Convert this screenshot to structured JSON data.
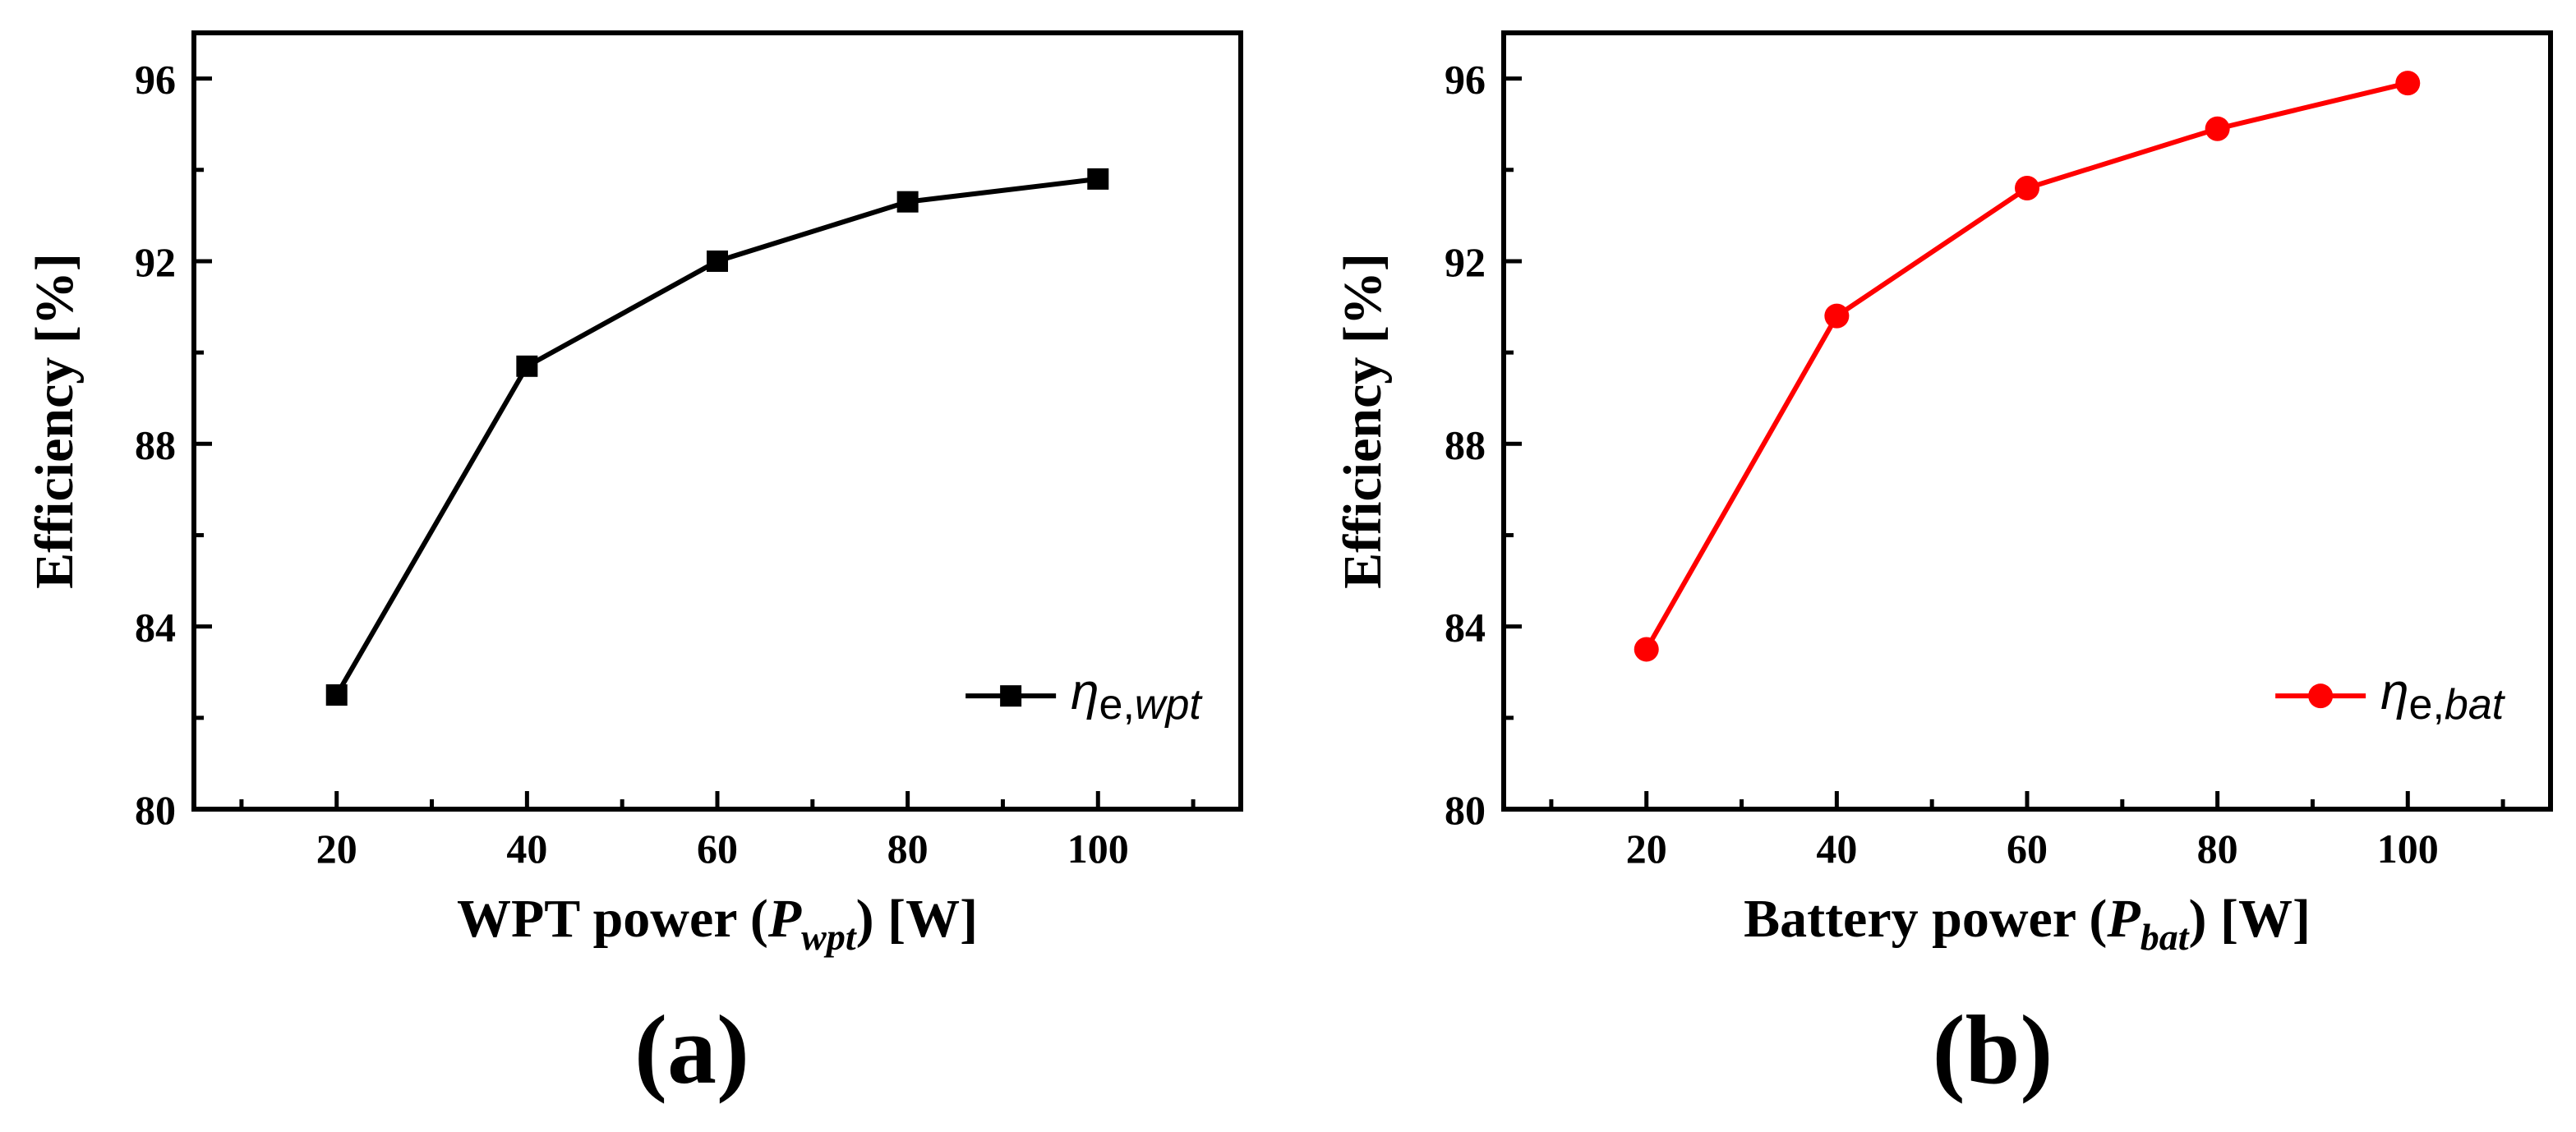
{
  "colors": {
    "series_a": "#000000",
    "series_b": "#ff0000"
  },
  "chart_data": [
    {
      "type": "line",
      "panel_label": "(a)",
      "xlabel": {
        "prefix": "WPT power (",
        "var": "P",
        "sub": "wpt",
        "suffix": ") [W]"
      },
      "ylabel": "Efficiency [%]",
      "x": [
        20,
        40,
        60,
        80,
        100
      ],
      "xlim": [
        5,
        115
      ],
      "ylim": [
        80,
        97
      ],
      "xticks": [
        20,
        40,
        60,
        80,
        100
      ],
      "yticks": [
        80,
        84,
        88,
        92,
        96
      ],
      "series": [
        {
          "name": {
            "base": "η",
            "sub_plain": "e,",
            "sub_italic": "wpt"
          },
          "values": [
            82.5,
            89.7,
            92.0,
            93.3,
            93.8
          ],
          "marker": "square",
          "color": "#000000"
        }
      ],
      "legend_position": "center-right"
    },
    {
      "type": "line",
      "panel_label": "(b)",
      "xlabel": {
        "prefix": "Battery power (",
        "var": "P",
        "sub": "bat",
        "suffix": ") [W]"
      },
      "ylabel": "Efficiency [%]",
      "x": [
        20,
        40,
        60,
        80,
        100
      ],
      "xlim": [
        5,
        115
      ],
      "ylim": [
        80,
        97
      ],
      "xticks": [
        20,
        40,
        60,
        80,
        100
      ],
      "yticks": [
        80,
        84,
        88,
        92,
        96
      ],
      "series": [
        {
          "name": {
            "base": "η",
            "sub_plain": "e,",
            "sub_italic": "bat"
          },
          "values": [
            83.5,
            90.8,
            93.6,
            94.9,
            95.9
          ],
          "marker": "circle",
          "color": "#ff0000"
        }
      ],
      "legend_position": "center-right"
    }
  ]
}
